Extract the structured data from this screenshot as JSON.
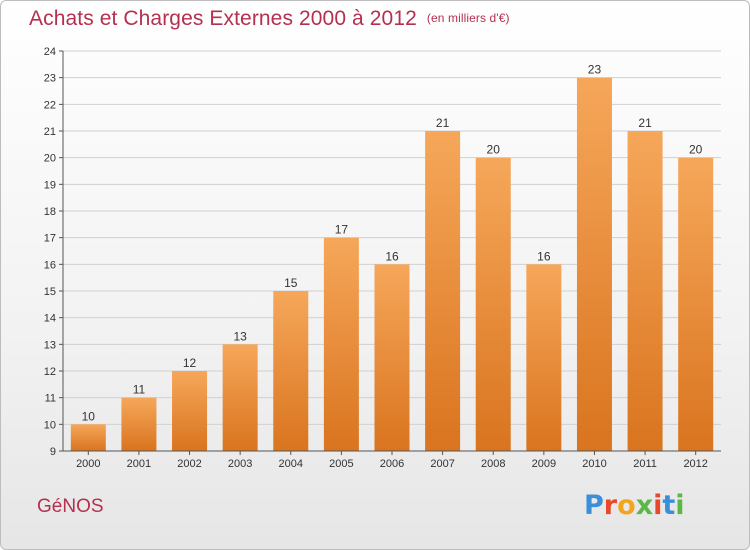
{
  "header": {
    "title": "Achats et Charges Externes 2000 à 2012",
    "unit": "(en milliers d'€)"
  },
  "footer": {
    "commune": "GéNOS",
    "logo_text": "Proxiti"
  },
  "colors": {
    "bar": "#f0923a",
    "bar_light": "#f6a75a",
    "bar_dark": "#d9741f",
    "title": "#b5304f",
    "axis": "#555555",
    "grid": "#d0d0d0"
  },
  "chart_data": {
    "type": "bar",
    "title": "Achats et Charges Externes 2000 à 2012",
    "subtitle": "(en milliers d'€)",
    "categories": [
      "2000",
      "2001",
      "2002",
      "2003",
      "2004",
      "2005",
      "2006",
      "2007",
      "2008",
      "2009",
      "2010",
      "2011",
      "2012"
    ],
    "values": [
      10,
      11,
      12,
      13,
      15,
      17,
      16,
      21,
      20,
      16,
      23,
      21,
      20
    ],
    "ylim": [
      9,
      24
    ],
    "yticks": [
      9,
      10,
      11,
      12,
      13,
      14,
      15,
      16,
      17,
      18,
      19,
      20,
      21,
      22,
      23,
      24
    ],
    "xlabel": "",
    "ylabel": "",
    "grid": true,
    "data_labels": true
  }
}
